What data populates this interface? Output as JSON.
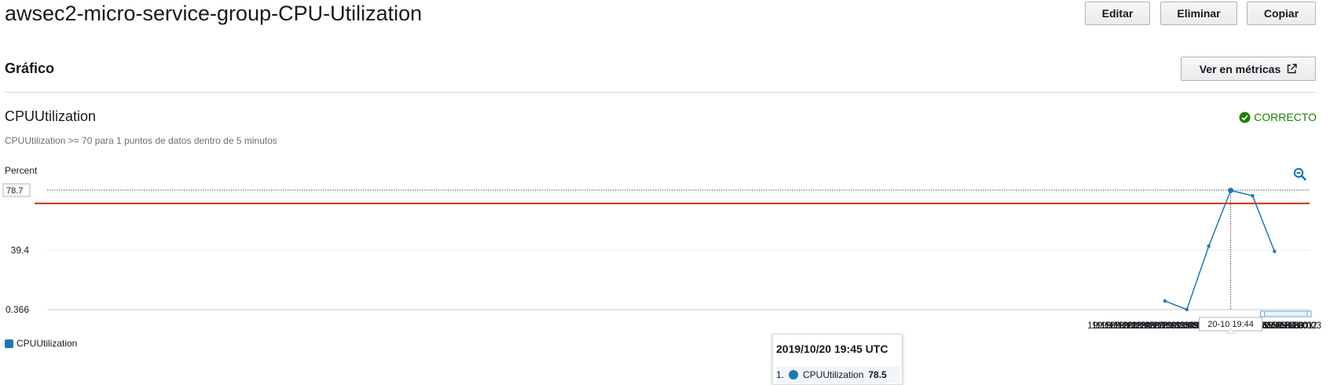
{
  "header": {
    "title": "awsec2-micro-service-group-CPU-Utilization",
    "buttons": {
      "edit": "Editar",
      "delete": "Eliminar",
      "copy": "Copiar"
    }
  },
  "section": {
    "title": "Gráfico",
    "metrics_button": "Ver en métricas",
    "metrics_icon": "external-link-icon"
  },
  "alarm": {
    "title": "CPUUtilization",
    "status": "CORRECTO",
    "status_icon": "check-circle-icon",
    "status_color": "#1d8102",
    "condition": "CPUUtilization >= 70 para 1 puntos de datos dentro de 5 minutos",
    "zoom_icon": "zoom-out-icon"
  },
  "chart_data": {
    "type": "line",
    "ylabel": "Percent",
    "yticks": [
      "78.7",
      "39.4",
      "0.366"
    ],
    "ylim": [
      0.366,
      78.7
    ],
    "x_ticks": [
      "19:15",
      "19:16",
      "19:17",
      "19:18",
      "19:19",
      "19:20",
      "19:21",
      "19:22",
      "19:23",
      "19:24",
      "19:25",
      "19:26",
      "19:27",
      "19:28",
      "19:29",
      "19:30",
      "19:31",
      "19:32",
      "19:33",
      "19:34",
      "19:35",
      "19:36",
      "19:37",
      "19:38",
      "19:39",
      "19:40",
      "19:41",
      "19:42",
      "19:43",
      "19:44",
      "19:45",
      "19:46",
      "19:47",
      "19:48",
      "19:49",
      "19:50",
      "19:51",
      "19:52",
      "19:53",
      "19:54",
      "19:55",
      "19:56",
      "19:57",
      "19:58",
      "19:59",
      "20:00",
      "20:01",
      "20:02",
      "20:03"
    ],
    "threshold": 70,
    "threshold_color": "#d13212",
    "series": [
      {
        "name": "CPUUtilization",
        "color": "#1f77b4",
        "x": [
          "19:30",
          "19:35",
          "19:40",
          "19:45",
          "19:50",
          "19:55"
        ],
        "values": [
          6.0,
          0.366,
          42.0,
          78.5,
          75.0,
          38.5
        ]
      }
    ],
    "hover_label": "20-10 19:44",
    "legend_position": "bottom-left",
    "grid": true
  },
  "tooltip": {
    "title": "2019/10/20 19:45 UTC",
    "index": "1.",
    "series": "CPUUtilization",
    "value": "78.5"
  }
}
